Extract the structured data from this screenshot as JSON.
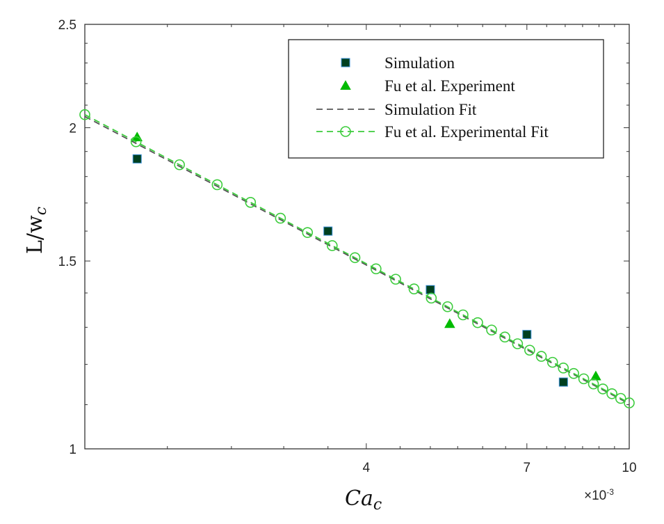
{
  "chart_data": {
    "type": "scatter",
    "title": "",
    "xlabel": "Ca",
    "xlabel_sub": "c",
    "ylabel": "L/w",
    "ylabel_sub": "c",
    "x_multiplier": "×10",
    "x_multiplier_exp": "-3",
    "x_scale": "log",
    "y_scale": "log",
    "xlim": [
      1.5,
      10
    ],
    "ylim": [
      1,
      2.5
    ],
    "x_ticks": [
      4,
      7,
      10
    ],
    "x_tick_labels": [
      "4",
      "7",
      "10"
    ],
    "x_minor_ticks": [
      2,
      2.5,
      3,
      3.5,
      4.5,
      5,
      5.5,
      6,
      6.5,
      7.5,
      8,
      8.5,
      9,
      9.5
    ],
    "y_ticks": [
      1,
      1.5,
      2,
      2.5
    ],
    "y_tick_labels": [
      "1",
      "1.5",
      "2",
      "2.5"
    ],
    "y_minor_ticks": [
      1.1,
      1.2,
      1.3,
      1.4,
      1.6,
      1.7,
      1.8,
      1.9,
      2.1,
      2.2,
      2.3,
      2.4
    ],
    "grid": false,
    "legend_position": "top-right",
    "series": [
      {
        "name": "Simulation",
        "kind": "markers",
        "marker": "square",
        "color": "#00401f",
        "edge_color": "#3b8fd6",
        "x": [
          1.8,
          3.5,
          5.0,
          7.0,
          7.95
        ],
        "y": [
          1.87,
          1.6,
          1.41,
          1.28,
          1.155
        ]
      },
      {
        "name": "Fu et al. Experiment",
        "kind": "markers",
        "marker": "triangle",
        "color": "#00bb00",
        "x": [
          1.8,
          5.35,
          8.9
        ],
        "y": [
          1.96,
          1.31,
          1.17
        ]
      },
      {
        "name": "Simulation Fit",
        "kind": "line",
        "style": "dashed",
        "color": "#555555",
        "fit": {
          "a": 2.34,
          "b": -0.327
        },
        "x": [
          1.5,
          10
        ]
      },
      {
        "name": "Fu et al. Experimental Fit",
        "kind": "line-markers",
        "style": "dashed",
        "marker": "circle",
        "color": "#3ccc3c",
        "fit": {
          "a": 2.35,
          "b": -0.328
        },
        "x": [
          1.5,
          1.793,
          2.086,
          2.379,
          2.672,
          2.966,
          3.259,
          3.552,
          3.845,
          4.138,
          4.431,
          4.724,
          5.017,
          5.31,
          5.603,
          5.897,
          6.19,
          6.483,
          6.776,
          7.069,
          7.362,
          7.655,
          7.948,
          8.241,
          8.534,
          8.828,
          9.121,
          9.414,
          9.707,
          10.0
        ]
      }
    ]
  }
}
